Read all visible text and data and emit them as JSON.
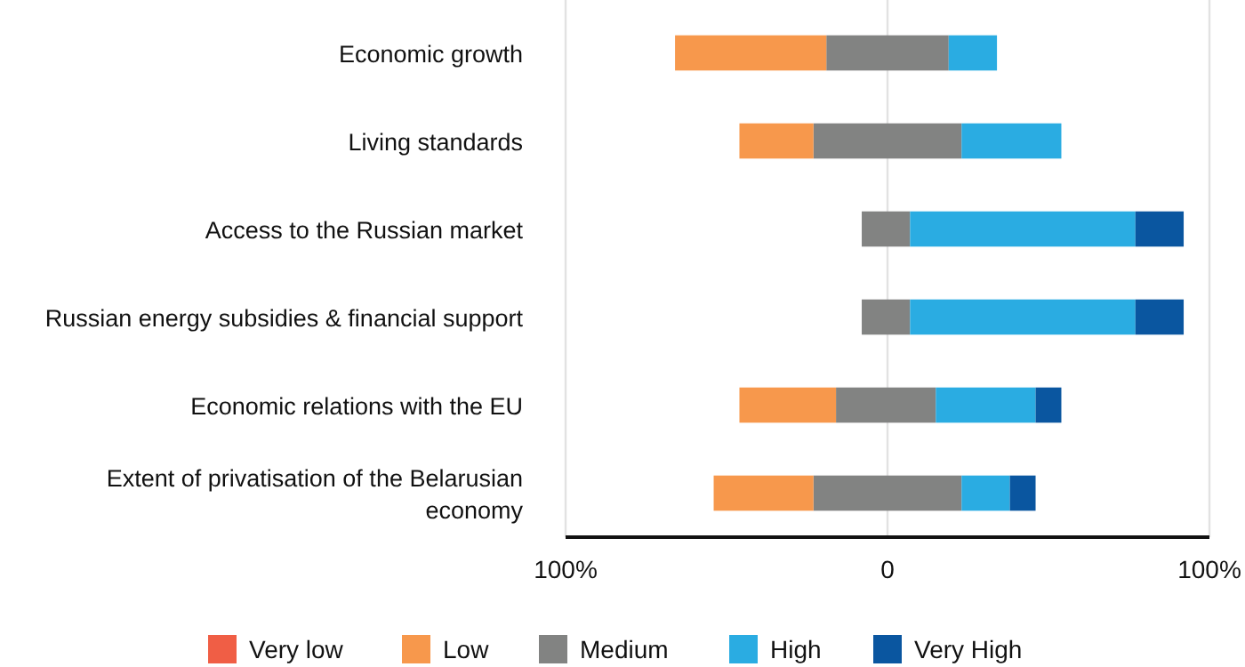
{
  "chart_data": {
    "type": "bar",
    "orientation": "horizontal",
    "stacked": true,
    "categories": [
      "Economic growth",
      "Living standards",
      "Access to the Russian market",
      "Russian energy subsidies & financial support",
      "Economic relations with the EU",
      "Extent of privatisation of the Belarusian economy"
    ],
    "series": [
      {
        "name": "Medium",
        "color": "#828382",
        "values": [
          -19,
          -23,
          -8,
          -8,
          -16,
          -23
        ]
      },
      {
        "name": "Low",
        "color": "#f7984c",
        "values": [
          -47,
          -23,
          0,
          0,
          -30,
          -31
        ]
      },
      {
        "name": "Very low",
        "color": "#f05e45",
        "values": [
          0,
          0,
          0,
          0,
          0,
          0
        ]
      },
      {
        "color": "#828382",
        "values": [
          19,
          23,
          7,
          7,
          15,
          23
        ]
      },
      {
        "name": "High",
        "color": "#2aace2",
        "values": [
          15,
          31,
          70,
          70,
          31,
          15
        ]
      },
      {
        "name": "Very High",
        "color": "#0a56a0",
        "values": [
          0,
          0,
          15,
          15,
          8,
          8
        ]
      }
    ],
    "xlim": [
      -100,
      100
    ],
    "xticks": [
      {
        "value": -100,
        "label": "100%"
      },
      0,
      {
        "value": 100,
        "label": "100%"
      }
    ],
    "grid": "x",
    "legend": "bottom"
  }
}
